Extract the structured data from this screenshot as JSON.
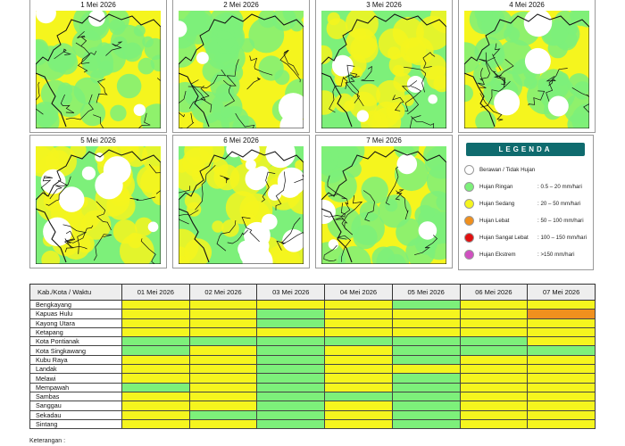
{
  "colors": {
    "berawan": "#ffffff",
    "ringan": "#7df07a",
    "sedang": "#f5f51e",
    "lebat": "#f0901e",
    "sangat_lebat": "#e01010",
    "ekstrem": "#d050c0",
    "legend_header": "#0f6b6e"
  },
  "maps": [
    {
      "title": "1 Mei 2026",
      "dominant": "sedang"
    },
    {
      "title": "2 Mei 2026",
      "dominant": "sedang"
    },
    {
      "title": "3 Mei 2026",
      "dominant": "ringan"
    },
    {
      "title": "4 Mei 2026",
      "dominant": "sedang"
    },
    {
      "title": "5 Mei 2026",
      "dominant": "ringan"
    },
    {
      "title": "6 Mei 2026",
      "dominant": "ringan"
    },
    {
      "title": "7 Mei 2026",
      "dominant": "sedang"
    }
  ],
  "legend": {
    "title": "LEGENDA",
    "items": [
      {
        "name": "Berawan / Tidak Hujan",
        "range": "",
        "color": "#ffffff"
      },
      {
        "name": "Hujan Ringan",
        "range": ": 0.5 – 20 mm/hari",
        "color": "#7df07a"
      },
      {
        "name": "Hujan Sedang",
        "range": ": 20 – 50 mm/hari",
        "color": "#f5f51e"
      },
      {
        "name": "Hujan Lebat",
        "range": ": 50 – 100 mm/hari",
        "color": "#f0901e"
      },
      {
        "name": "Hujan Sangat Lebat",
        "range": ": 100 – 150 mm/hari",
        "color": "#e01010"
      },
      {
        "name": "Hujan Ekstrem",
        "range": ": >150 mm/hari",
        "color": "#d050c0"
      }
    ]
  },
  "table": {
    "header": [
      "Kab./Kota / Waktu",
      "01 Mei 2026",
      "02 Mei 2026",
      "03 Mei 2026",
      "04 Mei 2026",
      "05 Mei 2026",
      "06 Mei 2026",
      "07 Mei 2026"
    ],
    "rows": [
      {
        "name": "Bengkayang",
        "cells": [
          "S",
          "S",
          "S",
          "S",
          "R",
          "S",
          "S"
        ]
      },
      {
        "name": "Kapuas Hulu",
        "cells": [
          "S",
          "S",
          "R",
          "S",
          "S",
          "S",
          "L"
        ]
      },
      {
        "name": "Kayong Utara",
        "cells": [
          "S",
          "S",
          "R",
          "S",
          "S",
          "S",
          "S"
        ]
      },
      {
        "name": "Ketapang",
        "cells": [
          "S",
          "S",
          "S",
          "S",
          "S",
          "S",
          "S"
        ]
      },
      {
        "name": "Kota Pontianak",
        "cells": [
          "R",
          "R",
          "R",
          "R",
          "R",
          "R",
          "S"
        ]
      },
      {
        "name": "Kota Singkawang",
        "cells": [
          "R",
          "S",
          "R",
          "S",
          "R",
          "R",
          "R"
        ]
      },
      {
        "name": "Kubu Raya",
        "cells": [
          "S",
          "S",
          "R",
          "S",
          "R",
          "S",
          "S"
        ]
      },
      {
        "name": "Landak",
        "cells": [
          "S",
          "S",
          "R",
          "S",
          "S",
          "S",
          "S"
        ]
      },
      {
        "name": "Melawi",
        "cells": [
          "S",
          "S",
          "R",
          "S",
          "R",
          "S",
          "S"
        ]
      },
      {
        "name": "Mempawah",
        "cells": [
          "R",
          "S",
          "R",
          "S",
          "R",
          "S",
          "S"
        ]
      },
      {
        "name": "Sambas",
        "cells": [
          "S",
          "S",
          "R",
          "R",
          "R",
          "S",
          "S"
        ]
      },
      {
        "name": "Sanggau",
        "cells": [
          "S",
          "S",
          "R",
          "S",
          "R",
          "S",
          "S"
        ]
      },
      {
        "name": "Sekadau",
        "cells": [
          "S",
          "R",
          "R",
          "S",
          "R",
          "S",
          "S"
        ]
      },
      {
        "name": "Sintang",
        "cells": [
          "S",
          "S",
          "R",
          "S",
          "R",
          "S",
          "S"
        ]
      }
    ]
  },
  "footnote": "Keterangan :"
}
